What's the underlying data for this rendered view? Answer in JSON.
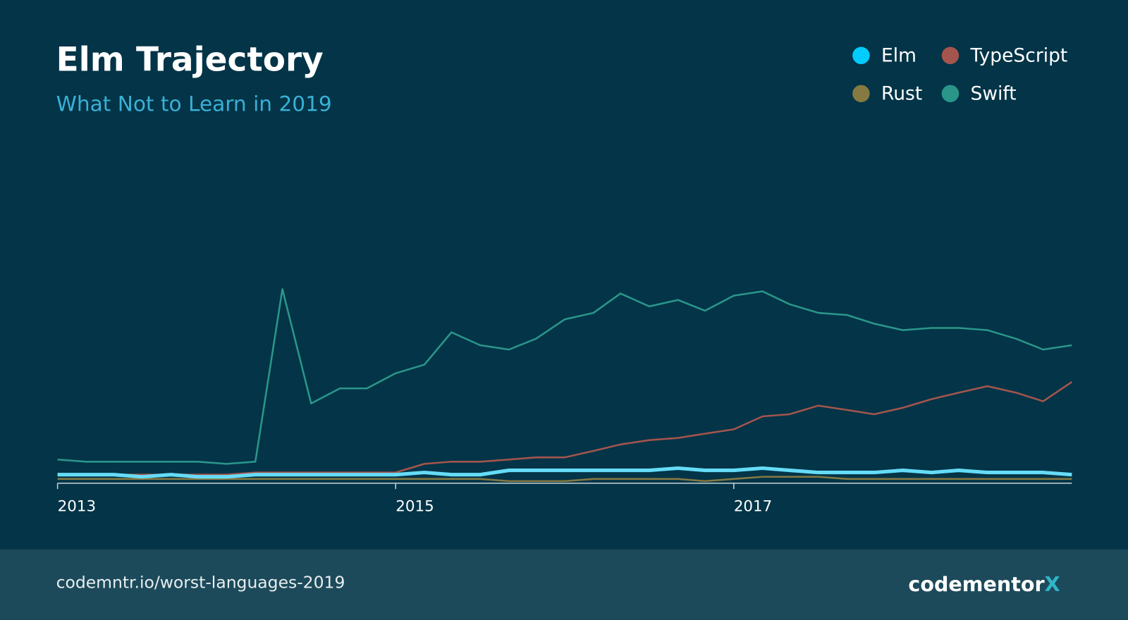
{
  "chart_data": {
    "type": "line",
    "title": "Elm Trajectory",
    "subtitle": "What Not to Learn in 2019",
    "x": [
      2013,
      2013.17,
      2013.33,
      2013.5,
      2013.67,
      2013.83,
      2014,
      2014.17,
      2014.33,
      2014.5,
      2014.67,
      2014.83,
      2015,
      2015.17,
      2015.33,
      2015.5,
      2015.67,
      2015.83,
      2016,
      2016.17,
      2016.33,
      2016.5,
      2016.67,
      2016.83,
      2017,
      2017.17,
      2017.33,
      2017.5,
      2017.67,
      2017.83,
      2018,
      2018.17,
      2018.33,
      2018.5,
      2018.67,
      2018.83,
      2019
    ],
    "xlim": [
      2013,
      2019
    ],
    "xticks": [
      2013,
      2015,
      2017
    ],
    "ylim": [
      0,
      100
    ],
    "series": [
      {
        "name": "Elm",
        "color": "#00ccff",
        "line_color": "#66dcf7",
        "values": [
          4,
          4,
          4,
          3,
          4,
          3,
          3,
          4,
          4,
          4,
          4,
          4,
          4,
          5,
          4,
          4,
          6,
          6,
          6,
          6,
          6,
          6,
          7,
          6,
          6,
          7,
          6,
          5,
          5,
          5,
          6,
          5,
          6,
          5,
          5,
          5,
          4
        ]
      },
      {
        "name": "TypeScript",
        "color": "#a4554d",
        "values": [
          4,
          4,
          4,
          4,
          4,
          4,
          4,
          5,
          5,
          5,
          5,
          5,
          5,
          9,
          10,
          10,
          11,
          12,
          12,
          15,
          18,
          20,
          21,
          23,
          25,
          31,
          32,
          36,
          34,
          32,
          35,
          39,
          42,
          45,
          42,
          38,
          47
        ]
      },
      {
        "name": "Rust",
        "color": "#857a42",
        "values": [
          2,
          2,
          2,
          2,
          2,
          2,
          2,
          2,
          2,
          2,
          2,
          2,
          2,
          2,
          2,
          2,
          1,
          1,
          1,
          2,
          2,
          2,
          2,
          1,
          2,
          3,
          3,
          3,
          2,
          2,
          2,
          2,
          2,
          2,
          2,
          2,
          2
        ]
      },
      {
        "name": "Swift",
        "color": "#2a968a",
        "values": [
          11,
          10,
          10,
          10,
          10,
          10,
          9,
          10,
          90,
          37,
          44,
          44,
          51,
          55,
          70,
          64,
          62,
          67,
          76,
          79,
          88,
          82,
          85,
          80,
          87,
          89,
          83,
          79,
          78,
          74,
          71,
          72,
          72,
          71,
          67,
          62,
          64
        ]
      }
    ]
  },
  "footer": {
    "url": "codemntr.io/worst-languages-2019",
    "logo_text": "codementor",
    "logo_mark": "X"
  }
}
